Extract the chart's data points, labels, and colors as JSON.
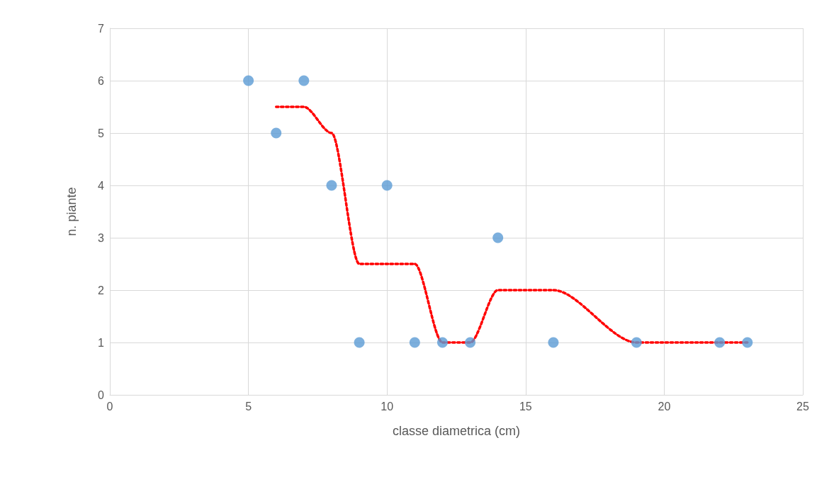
{
  "chart_data": {
    "type": "scatter",
    "xlabel": "classe diametrica (cm)",
    "ylabel": "n. piante",
    "series": [
      {
        "color": "#5b9bd5",
        "x": [
          5,
          6,
          7,
          8,
          9,
          10,
          11,
          12,
          13,
          14,
          16,
          19,
          22,
          23
        ],
        "values": [
          6,
          5,
          6,
          4,
          1,
          4,
          1,
          1,
          1,
          3,
          1,
          1,
          1,
          1
        ],
        "marker": "circle"
      },
      {
        "type": "line",
        "color": "#ff0000",
        "x": [
          6,
          7,
          8,
          9,
          10,
          11,
          12,
          13,
          14,
          16,
          19,
          22,
          23
        ],
        "values": [
          5.5,
          5.5,
          5,
          2.5,
          2.5,
          2.5,
          1,
          1,
          2,
          2,
          1,
          1,
          1
        ],
        "line_style": "dotted",
        "marker": "none"
      }
    ],
    "xlim": [
      0,
      25
    ],
    "xticks": [
      0,
      5,
      10,
      15,
      20,
      25
    ],
    "ylim": [
      0,
      7
    ],
    "yticks": [
      0,
      1,
      2,
      3,
      4,
      5,
      6,
      7
    ],
    "grid": true
  }
}
